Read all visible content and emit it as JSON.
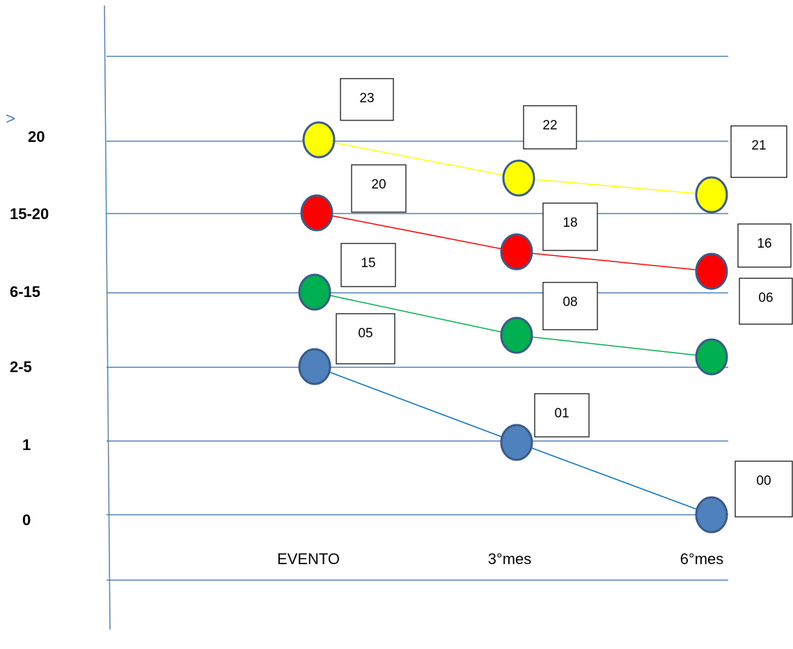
{
  "y_prefix": ">",
  "y_labels": [
    "20",
    "15-20",
    "6-15",
    "2-5",
    "1",
    "0"
  ],
  "x_labels": [
    "EVENTO",
    "3°mes",
    "6°mes"
  ],
  "series": [
    {
      "color": "#ffff00",
      "labels": [
        "23",
        "22",
        "21"
      ]
    },
    {
      "color": "#ff0000",
      "labels": [
        "20",
        "18",
        "16"
      ]
    },
    {
      "color": "#00b050",
      "labels": [
        "15",
        "08",
        "06"
      ]
    },
    {
      "color": "#4f81bd",
      "labels": [
        "05",
        "01",
        "00"
      ]
    }
  ]
}
